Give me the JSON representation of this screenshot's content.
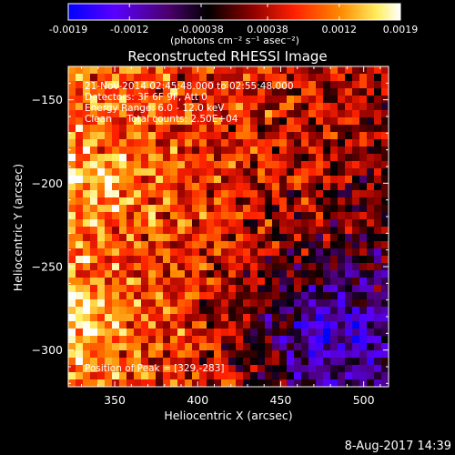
{
  "colorbar": {
    "tick_labels": [
      "-0.0019",
      "-0.0012",
      "-0.00038",
      "0.00038",
      "0.0012",
      "0.0019"
    ],
    "tick_values": [
      -0.0019,
      -0.0012,
      -0.00038,
      0.00038,
      0.0012,
      0.0019
    ],
    "range": [
      -0.0019,
      0.0019
    ],
    "units": "(photons cm⁻² s⁻¹ asec⁻²)",
    "colormap": [
      "#0000ff",
      "#6a00ff",
      "#4b006e",
      "#000000",
      "#8a0000",
      "#ff2000",
      "#ff8a00",
      "#ffff80",
      "#ffffff"
    ]
  },
  "chart_data": {
    "type": "heatmap",
    "title": "Reconstructed RHESSI Image",
    "xlabel": "Heliocentric X (arcsec)",
    "ylabel": "Heliocentric Y (arcsec)",
    "xlim": [
      322,
      515
    ],
    "ylim": [
      -322,
      -130
    ],
    "x_ticks": [
      350,
      400,
      450,
      500
    ],
    "y_ticks": [
      -150,
      -200,
      -250,
      -300
    ],
    "x_tick_labels": [
      "350",
      "400",
      "450",
      "500"
    ],
    "y_tick_labels": [
      "−150",
      "−200",
      "−250",
      "−300"
    ],
    "peak_position": [
      329,
      -283
    ],
    "annotations": [
      "21-Nov-2014 02:45:48.000 to 02:55:48.000",
      "Detectors: 3F 6F 9F, Att 0",
      "Energy Range: 6.0 - 12.0 keV",
      "Clean     Total counts: 2.50E+04"
    ],
    "peak_label": "Position of Peak = [329,-283]"
  },
  "footer": {
    "timestamp": "8-Aug-2017 14:39"
  }
}
